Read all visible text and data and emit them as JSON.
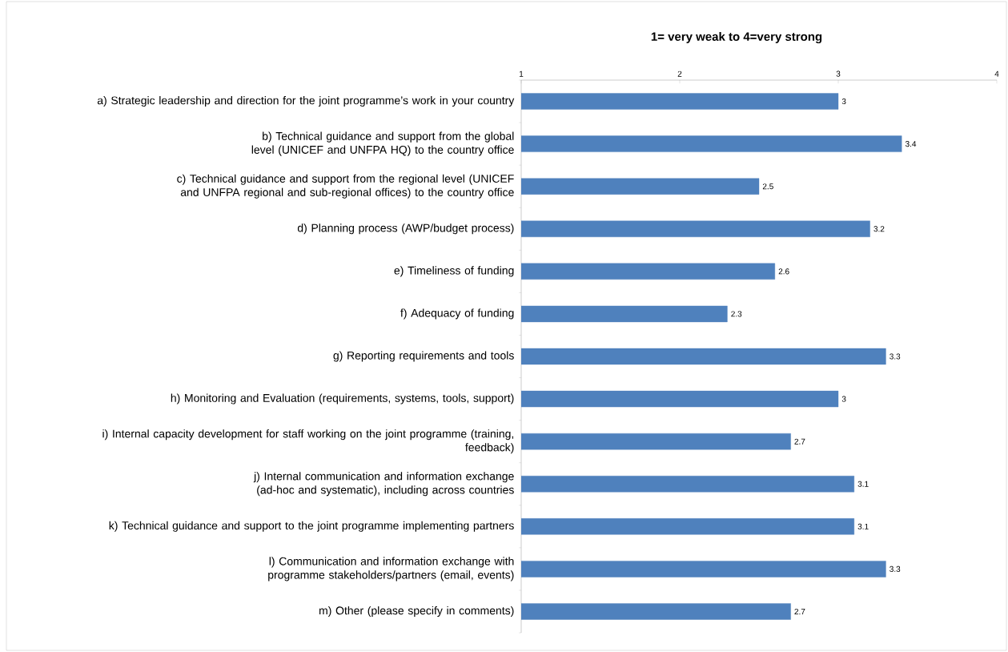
{
  "chart_data": {
    "type": "bar",
    "orientation": "horizontal",
    "title": "1= very weak to 4=very strong",
    "categories": [
      "a) Strategic leadership and direction for the joint programme’s work in your country",
      "b) Technical guidance and support from the global level (UNICEF and UNFPA HQ) to the country office",
      "c) Technical guidance and support from the regional level (UNICEF and UNFPA regional and sub-regional offices) to the country office",
      "d) Planning process (AWP/budget process)",
      "e) Timeliness of funding",
      "f) Adequacy of funding",
      "g) Reporting requirements and tools",
      "h) Monitoring and Evaluation (requirements, systems, tools, support)",
      "i) Internal capacity development for staff working on the joint programme (training, feedback)",
      "j) Internal communication and information exchange (ad-hoc and systematic), including across countries",
      "k) Technical guidance and support to the joint programme implementing partners",
      "l) Communication and information exchange with programme stakeholders/partners (email, events)",
      "m) Other (please specify in comments)"
    ],
    "values": [
      3,
      3.4,
      2.5,
      3.2,
      2.6,
      2.3,
      3.3,
      3,
      2.7,
      3.1,
      3.1,
      3.3,
      2.7
    ],
    "color": "#4f81bd",
    "data_labels": true,
    "xlim": [
      1,
      4
    ],
    "xticks": [
      1,
      2,
      3,
      4
    ]
  }
}
